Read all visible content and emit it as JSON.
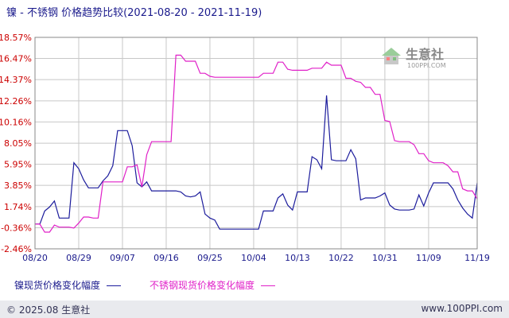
{
  "header": {
    "title": "镍 - 不锈钢 价格趋势比较(2021-08-20 - 2021-11-19)"
  },
  "watermark": {
    "name": "生意社",
    "url": "100PPI.COM"
  },
  "footer": {
    "copyright": "© 2025.08 生意社",
    "site": "www.100PPI.com"
  },
  "colors": {
    "nickel": "#1c1c9c",
    "stainless": "#e020c8",
    "grid": "#c8c8c8",
    "ytick": "#cc0000"
  },
  "chart_data": {
    "type": "line",
    "title": "镍 - 不锈钢 价格趋势比较(2021-08-20 - 2021-11-19)",
    "ylim": [
      -2.46,
      18.57
    ],
    "yticks": [
      "18.57%",
      "16.47%",
      "14.37%",
      "12.26%",
      "10.16%",
      "8.05%",
      "5.95%",
      "3.85%",
      "1.74%",
      "-0.36%",
      "-2.46%"
    ],
    "ytick_values": [
      18.57,
      16.47,
      14.37,
      12.26,
      10.16,
      8.05,
      5.95,
      3.85,
      1.74,
      -0.36,
      -2.46
    ],
    "xlim": [
      0,
      91
    ],
    "xticks": [
      "08/20",
      "08/29",
      "09/07",
      "09/16",
      "09/25",
      "10/04",
      "10/13",
      "10/22",
      "10/31",
      "11/09",
      "11/19"
    ],
    "xtick_values": [
      0,
      9,
      18,
      27,
      36,
      45,
      54,
      63,
      72,
      81,
      91
    ],
    "series": [
      {
        "name": "镍现货价格变化幅度",
        "color": "#1c1c9c",
        "x": [
          0,
          1,
          2,
          3,
          4,
          5,
          6,
          7,
          8,
          9,
          10,
          11,
          12,
          13,
          14,
          15,
          16,
          17,
          18,
          19,
          20,
          21,
          22,
          23,
          24,
          25,
          26,
          27,
          28,
          29,
          30,
          31,
          32,
          33,
          34,
          35,
          36,
          37,
          38,
          39,
          40,
          41,
          42,
          43,
          44,
          45,
          46,
          47,
          48,
          49,
          50,
          51,
          52,
          53,
          54,
          55,
          56,
          57,
          58,
          59,
          60,
          61,
          62,
          63,
          64,
          65,
          66,
          67,
          68,
          69,
          70,
          71,
          72,
          73,
          74,
          75,
          76,
          77,
          78,
          79,
          80,
          81,
          82,
          83,
          84,
          85,
          86,
          87,
          88,
          89,
          90,
          91
        ],
        "y": [
          0.0,
          0.0,
          1.3,
          1.7,
          2.3,
          0.6,
          0.6,
          0.6,
          6.1,
          5.5,
          4.4,
          3.6,
          3.6,
          3.6,
          4.3,
          4.8,
          5.8,
          9.3,
          9.3,
          9.3,
          7.8,
          4.1,
          3.7,
          4.2,
          3.3,
          3.3,
          3.3,
          3.3,
          3.3,
          3.3,
          3.2,
          2.8,
          2.7,
          2.8,
          3.2,
          1.0,
          0.6,
          0.4,
          -0.5,
          -0.5,
          -0.5,
          -0.5,
          -0.5,
          -0.5,
          -0.5,
          -0.5,
          -0.5,
          1.3,
          1.3,
          1.3,
          2.6,
          3.0,
          1.9,
          1.4,
          3.2,
          3.2,
          3.2,
          6.7,
          6.4,
          5.5,
          12.8,
          6.4,
          6.3,
          6.3,
          6.3,
          7.4,
          6.5,
          2.4,
          2.6,
          2.6,
          2.6,
          2.8,
          3.1,
          1.9,
          1.5,
          1.4,
          1.4,
          1.4,
          1.5,
          2.9,
          1.8,
          3.1,
          4.1,
          4.1,
          4.1,
          4.1,
          3.5,
          2.4,
          1.6,
          1.0,
          0.6,
          4.1
        ]
      },
      {
        "name": "不锈钢现货价格变化幅度",
        "color": "#e020c8",
        "x": [
          0,
          1,
          2,
          3,
          4,
          5,
          6,
          7,
          8,
          9,
          10,
          11,
          12,
          13,
          14,
          15,
          16,
          17,
          18,
          19,
          20,
          21,
          22,
          23,
          24,
          25,
          26,
          27,
          28,
          29,
          30,
          31,
          32,
          33,
          34,
          35,
          36,
          37,
          38,
          39,
          40,
          41,
          42,
          43,
          44,
          45,
          46,
          47,
          48,
          49,
          50,
          51,
          52,
          53,
          54,
          55,
          56,
          57,
          58,
          59,
          60,
          61,
          62,
          63,
          64,
          65,
          66,
          67,
          68,
          69,
          70,
          71,
          72,
          73,
          74,
          75,
          76,
          77,
          78,
          79,
          80,
          81,
          82,
          83,
          84,
          85,
          86,
          87,
          88,
          89,
          90,
          91
        ],
        "y": [
          0.0,
          0.0,
          -0.8,
          -0.8,
          -0.1,
          -0.3,
          -0.3,
          -0.3,
          -0.4,
          0.1,
          0.7,
          0.7,
          0.6,
          0.6,
          4.2,
          4.2,
          4.2,
          4.2,
          4.2,
          5.7,
          5.7,
          5.9,
          3.7,
          6.9,
          8.2,
          8.2,
          8.2,
          8.2,
          8.2,
          16.8,
          16.8,
          16.2,
          16.2,
          16.2,
          15.0,
          15.0,
          14.7,
          14.6,
          14.6,
          14.6,
          14.6,
          14.6,
          14.6,
          14.6,
          14.6,
          14.6,
          14.6,
          15.0,
          15.0,
          15.0,
          16.1,
          16.1,
          15.4,
          15.3,
          15.3,
          15.3,
          15.3,
          15.5,
          15.5,
          15.5,
          16.1,
          15.8,
          15.8,
          15.8,
          14.5,
          14.5,
          14.2,
          14.1,
          13.6,
          13.6,
          12.9,
          12.9,
          10.3,
          10.2,
          8.3,
          8.2,
          8.2,
          8.2,
          7.9,
          7.0,
          7.0,
          6.3,
          6.1,
          6.1,
          6.1,
          5.8,
          5.2,
          5.2,
          3.5,
          3.3,
          3.3,
          2.5
        ]
      }
    ],
    "grid": true,
    "legend": "bottom-left"
  },
  "legend": {
    "nickel": "镍现货价格变化幅度",
    "stainless": "不锈钢现货价格变化幅度"
  }
}
